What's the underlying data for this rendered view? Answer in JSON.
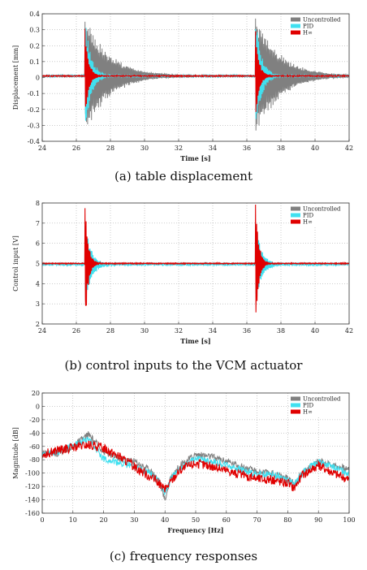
{
  "legend": [
    "Uncontrolled",
    "PID",
    "H∞"
  ],
  "colors": {
    "uncontrolled": "#808080",
    "pid": "#40e0f0",
    "hinf": "#e00000"
  },
  "captions": [
    "(a)  table  displacement",
    "(b)  control  inputs  to  the  VCM  actuator",
    "(c)  frequency  responses"
  ],
  "chart_data": [
    {
      "type": "line",
      "title": "",
      "xlabel": "Time  [s]",
      "ylabel": "Displacement  [mm]",
      "xlim": [
        2.4,
        4.2
      ],
      "ylim": [
        -0.4,
        0.4
      ],
      "xticks": [
        2.4,
        2.6,
        2.8,
        3.0,
        3.2,
        3.4,
        3.6,
        3.8,
        4.0,
        4.2
      ],
      "xtick_labels": [
        "24",
        "26",
        "28",
        "30",
        "32",
        "34",
        "36",
        "38",
        "40",
        "42"
      ],
      "yticks": [
        -0.4,
        -0.3,
        -0.2,
        -0.1,
        0,
        0.1,
        0.2,
        0.3,
        0.4
      ],
      "ytick_labels": [
        "-0.4",
        "-0.3",
        "-0.2",
        "-0.1",
        "0",
        "0.1",
        "0.2",
        "0.3",
        "0.4"
      ],
      "grid": true,
      "legend_position": "top-right",
      "series": [
        {
          "name": "Uncontrolled",
          "impulses": [
            2.65,
            3.65
          ],
          "peak": 0.34,
          "decay_time": 0.14,
          "baseline": 0.01
        },
        {
          "name": "PID",
          "impulses": [
            2.65,
            3.65
          ],
          "peak": 0.35,
          "decay_time": 0.035,
          "baseline": 0.01
        },
        {
          "name": "H∞",
          "impulses": [
            2.65,
            3.65
          ],
          "peak": 0.3,
          "decay_time": 0.02,
          "baseline": 0.01
        }
      ]
    },
    {
      "type": "line",
      "title": "",
      "xlabel": "Time  [s]",
      "ylabel": "Control  input  [V]",
      "xlim": [
        2.4,
        4.2
      ],
      "ylim": [
        2,
        8
      ],
      "xticks": [
        2.4,
        2.6,
        2.8,
        3.0,
        3.2,
        3.4,
        3.6,
        3.8,
        4.0,
        4.2
      ],
      "xtick_labels": [
        "24",
        "26",
        "28",
        "30",
        "32",
        "34",
        "36",
        "38",
        "40",
        "42"
      ],
      "yticks": [
        2,
        3,
        4,
        5,
        6,
        7,
        8
      ],
      "ytick_labels": [
        "2",
        "3",
        "4",
        "5",
        "6",
        "7",
        "8"
      ],
      "grid": true,
      "legend_position": "top-right",
      "series": [
        {
          "name": "Uncontrolled",
          "impulses": [
            2.65,
            3.65
          ],
          "peak": 0.02,
          "decay_time": 0.01,
          "baseline": 5.0
        },
        {
          "name": "PID",
          "impulses": [
            2.65,
            3.65
          ],
          "peak": 2.0,
          "decay_time": 0.035,
          "baseline": 4.95
        },
        {
          "name": "H∞",
          "impulses": [
            2.65,
            3.65
          ],
          "peak": 3.2,
          "decay_time": 0.018,
          "baseline": 5.0
        }
      ]
    },
    {
      "type": "line",
      "title": "",
      "xlabel": "Frequency  [Hz]",
      "ylabel": "Magnitude  [dB]",
      "xlim": [
        0,
        100
      ],
      "ylim": [
        -160,
        20
      ],
      "xticks": [
        0,
        10,
        20,
        30,
        40,
        50,
        60,
        70,
        80,
        90,
        100
      ],
      "xtick_labels": [
        "0",
        "10",
        "20",
        "30",
        "40",
        "50",
        "60",
        "70",
        "80",
        "90",
        "100"
      ],
      "yticks": [
        -160,
        -140,
        -120,
        -100,
        -80,
        -60,
        -40,
        -20,
        0,
        20
      ],
      "ytick_labels": [
        "-160",
        "-140",
        "-120",
        "-100",
        "-80",
        "-60",
        "-40",
        "-20",
        "0",
        "20"
      ],
      "grid": true,
      "legend_position": "top-right",
      "series": [
        {
          "name": "Uncontrolled",
          "x": [
            0,
            5,
            10,
            15,
            20,
            25,
            30,
            35,
            38,
            40,
            42,
            45,
            50,
            55,
            60,
            65,
            70,
            75,
            80,
            82,
            85,
            90,
            95,
            100
          ],
          "y": [
            -70,
            -70,
            -60,
            -42,
            -68,
            -78,
            -82,
            -95,
            -110,
            -140,
            -105,
            -88,
            -72,
            -75,
            -82,
            -90,
            -98,
            -100,
            -108,
            -115,
            -98,
            -82,
            -88,
            -95
          ]
        },
        {
          "name": "PID",
          "x": [
            0,
            5,
            10,
            15,
            20,
            25,
            30,
            35,
            38,
            40,
            42,
            45,
            50,
            55,
            60,
            65,
            70,
            75,
            80,
            82,
            85,
            90,
            95,
            100
          ],
          "y": [
            -72,
            -68,
            -58,
            -50,
            -78,
            -85,
            -90,
            -100,
            -112,
            -130,
            -108,
            -92,
            -78,
            -82,
            -88,
            -95,
            -102,
            -102,
            -110,
            -118,
            -98,
            -82,
            -92,
            -100
          ]
        },
        {
          "name": "H∞",
          "x": [
            0,
            5,
            10,
            15,
            20,
            25,
            30,
            35,
            38,
            40,
            42,
            45,
            50,
            55,
            60,
            65,
            70,
            75,
            80,
            82,
            85,
            90,
            95,
            100
          ],
          "y": [
            -72,
            -66,
            -62,
            -58,
            -62,
            -75,
            -90,
            -105,
            -115,
            -125,
            -112,
            -95,
            -85,
            -90,
            -96,
            -103,
            -108,
            -110,
            -115,
            -122,
            -102,
            -88,
            -100,
            -110
          ]
        }
      ]
    }
  ]
}
